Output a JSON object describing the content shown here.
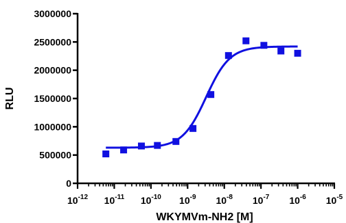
{
  "chart_data": {
    "type": "scatter",
    "title": "",
    "xlabel": "WKYMVm-NH2 [M]",
    "ylabel": "RLU",
    "x_scale": "log",
    "xlim_exponents": [
      -12,
      -5
    ],
    "x_tick_base": "10",
    "x_tick_exponents": [
      "-12",
      "-11",
      "-10",
      "-9",
      "-8",
      "-7",
      "-6",
      "-5"
    ],
    "ylim": [
      0,
      3000000
    ],
    "y_ticks": [
      "0",
      "500000",
      "1000000",
      "1500000",
      "2000000",
      "2500000",
      "3000000"
    ],
    "grid": false,
    "legend": "none",
    "color": "#1010e0",
    "series": [
      {
        "marker": "square",
        "points": [
          {
            "x": "5.9e-12",
            "y": 520000
          },
          {
            "x": "1.8e-11",
            "y": 590000
          },
          {
            "x": "5.5e-11",
            "y": 660000
          },
          {
            "x": "1.5e-10",
            "y": 670000
          },
          {
            "x": "4.8e-10",
            "y": 740000
          },
          {
            "x": "1.4e-9",
            "y": 970000
          },
          {
            "x": "4.3e-9",
            "y": 1570000
          },
          {
            "x": "1.3e-8",
            "y": 2260000
          },
          {
            "x": "3.9e-8",
            "y": 2520000
          },
          {
            "x": "1.2e-7",
            "y": 2440000
          },
          {
            "x": "3.5e-7",
            "y": 2340000
          },
          {
            "x": "1.0e-6",
            "y": 2300000
          }
        ],
        "fit": {
          "model": "sigmoidal dose-response",
          "bottom": 630000,
          "top": 2420000,
          "ec50": "3.2e-9",
          "hill_slope": 1.35
        }
      }
    ]
  }
}
